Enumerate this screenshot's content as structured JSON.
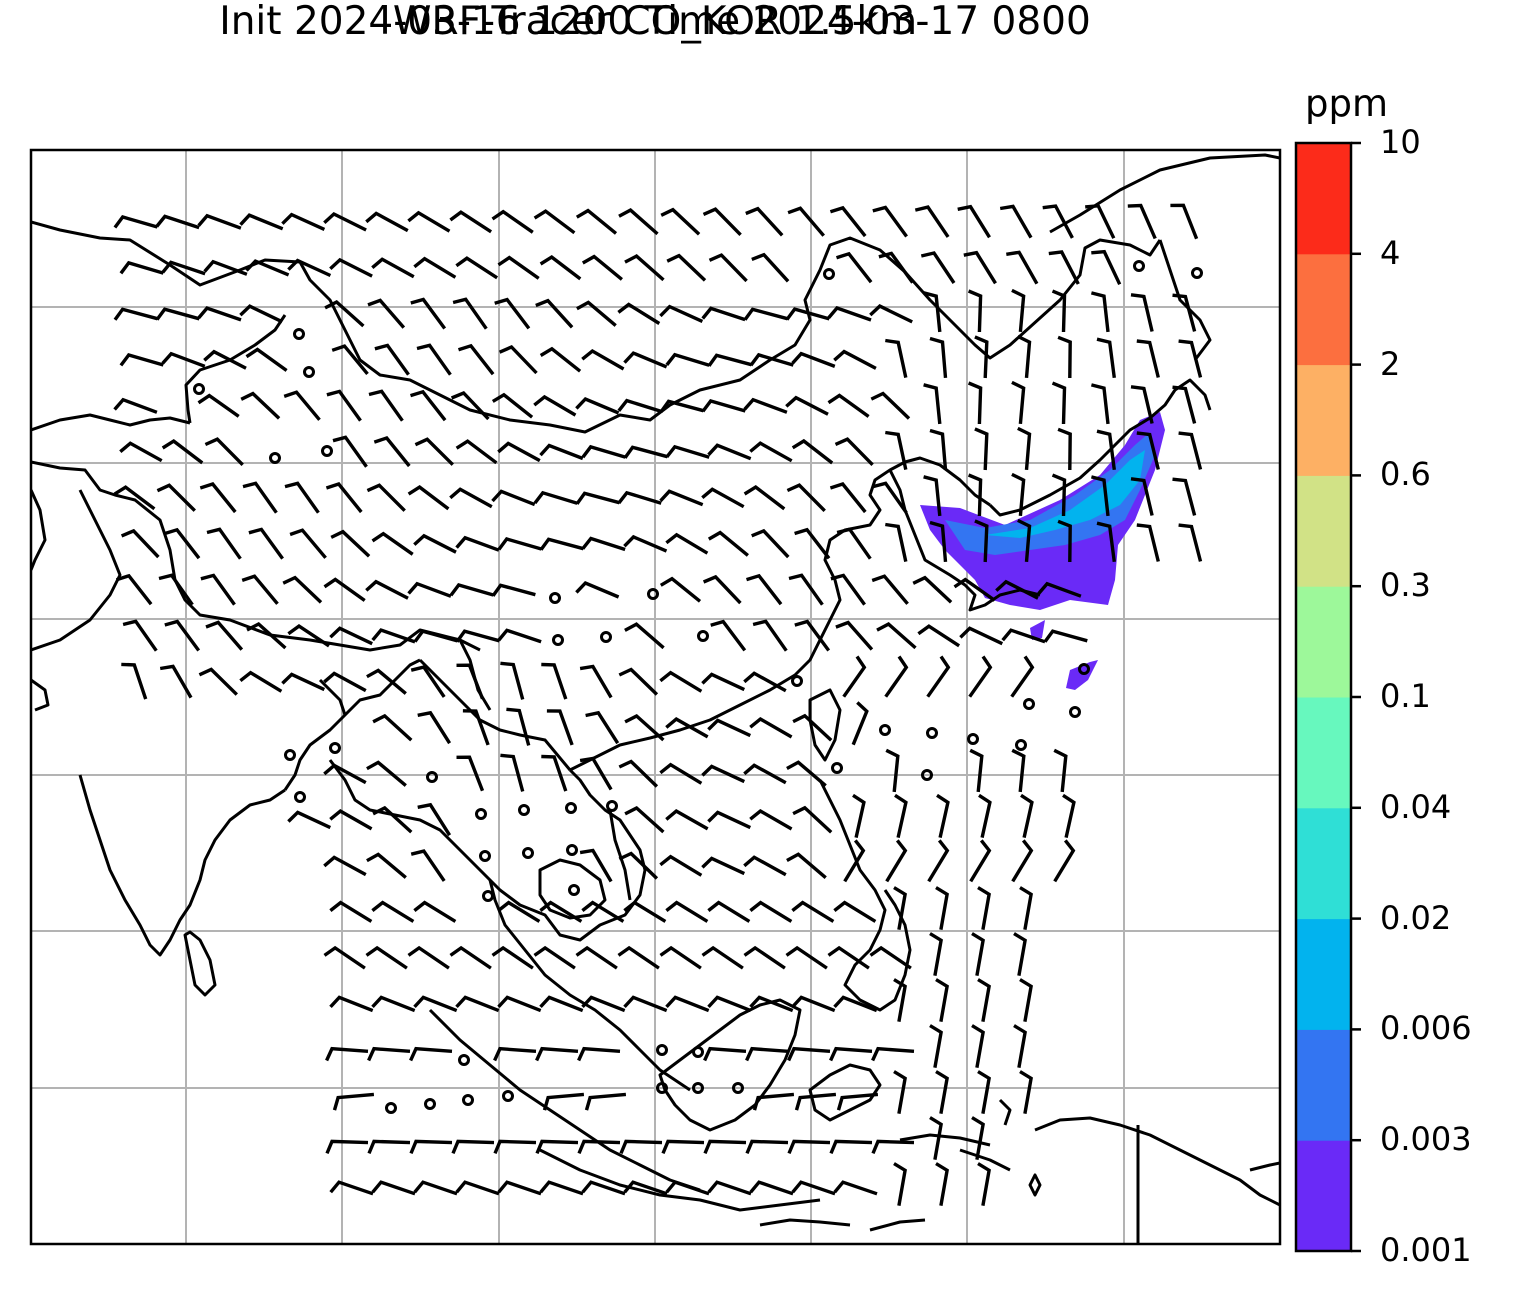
{
  "title_line1": "WRF-Tracer CO_KOR 1.5km",
  "title_line2": "Init 2024-03-16 1200 Time 2024-03-17 0800",
  "colorbar": {
    "unit": "ppm",
    "levels": [
      "0.001",
      "0.003",
      "0.006",
      "0.02",
      "0.04",
      "0.1",
      "0.3",
      "0.6",
      "2",
      "4",
      "10"
    ],
    "colors": [
      "#6a2af7",
      "#3375f2",
      "#02b3ee",
      "#2fdfd6",
      "#67f8be",
      "#9df89a",
      "#d1e286",
      "#fdb064",
      "#fc6f3f",
      "#fc2b1a"
    ]
  },
  "map": {
    "gridlines": true,
    "overlay": "wind barbs",
    "plume_colors": {
      "low": "#6a2af7",
      "mid": "#3375f2",
      "high": "#02b3ee"
    }
  }
}
